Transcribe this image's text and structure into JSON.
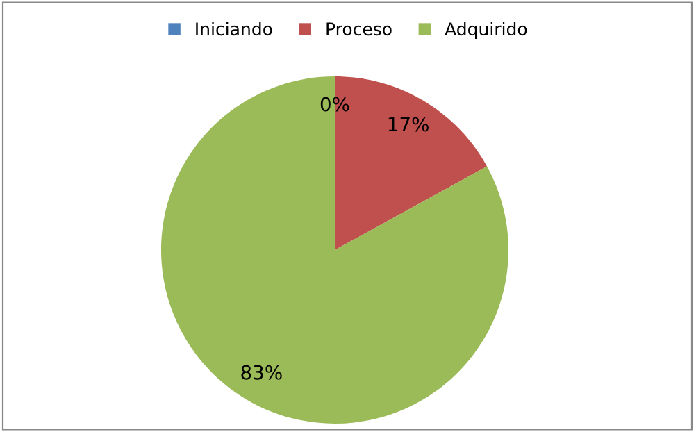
{
  "chart_data": {
    "type": "pie",
    "categories": [
      "Iniciando",
      "Proceso",
      "Adquirido"
    ],
    "values": [
      0,
      17,
      83
    ],
    "colors": [
      "#4f81bd",
      "#c0504d",
      "#9bbb59"
    ],
    "value_labels": [
      "0%",
      "17%",
      "83%"
    ],
    "legend": "top"
  }
}
